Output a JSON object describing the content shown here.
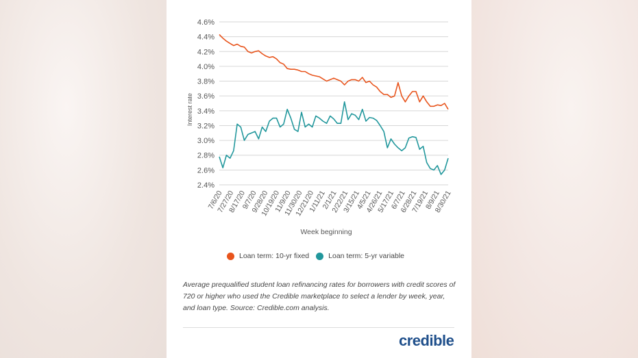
{
  "chart_data": {
    "type": "line",
    "xlabel": "Week beginning",
    "ylabel": "Interest rate",
    "ylim": [
      2.4,
      4.6
    ],
    "yticks": [
      "2.4%",
      "2.6%",
      "2.8%",
      "3.0%",
      "3.2%",
      "3.4%",
      "3.6%",
      "3.8%",
      "4.0%",
      "4.2%",
      "4.4%",
      "4.6%"
    ],
    "xticks": [
      "7/6/20",
      "7/27/20",
      "8/17/20",
      "9/7/20",
      "9/28/20",
      "10/19/20",
      "11/9/20",
      "11/30/20",
      "12/21/20",
      "1/11/21",
      "2/1/21",
      "2/22/21",
      "3/15/21",
      "4/5/21",
      "4/26/21",
      "5/17/21",
      "6/7/21",
      "6/28/21",
      "7/19/21",
      "8/9/21",
      "8/30/21"
    ],
    "grid": true,
    "legend_position": "bottom",
    "series": [
      {
        "name": "Loan term: 10-yr fixed",
        "color": "#e8541c",
        "values": [
          4.43,
          4.38,
          4.34,
          4.31,
          4.28,
          4.3,
          4.27,
          4.26,
          4.2,
          4.18,
          4.2,
          4.21,
          4.17,
          4.14,
          4.12,
          4.13,
          4.1,
          4.05,
          4.03,
          3.97,
          3.96,
          3.96,
          3.95,
          3.93,
          3.93,
          3.9,
          3.88,
          3.87,
          3.86,
          3.83,
          3.8,
          3.82,
          3.84,
          3.82,
          3.8,
          3.75,
          3.8,
          3.82,
          3.82,
          3.8,
          3.85,
          3.78,
          3.8,
          3.75,
          3.72,
          3.66,
          3.62,
          3.62,
          3.58,
          3.6,
          3.78,
          3.6,
          3.52,
          3.6,
          3.66,
          3.66,
          3.52,
          3.6,
          3.52,
          3.46,
          3.46,
          3.48,
          3.47,
          3.5,
          3.42
        ]
      },
      {
        "name": "Loan term: 5-yr variable",
        "color": "#21979c",
        "values": [
          2.78,
          2.63,
          2.8,
          2.76,
          2.86,
          3.22,
          3.18,
          3.0,
          3.08,
          3.1,
          3.12,
          3.02,
          3.18,
          3.12,
          3.26,
          3.3,
          3.3,
          3.18,
          3.22,
          3.42,
          3.3,
          3.15,
          3.12,
          3.38,
          3.18,
          3.22,
          3.18,
          3.33,
          3.3,
          3.26,
          3.23,
          3.33,
          3.29,
          3.23,
          3.23,
          3.52,
          3.28,
          3.36,
          3.34,
          3.28,
          3.42,
          3.26,
          3.31,
          3.3,
          3.27,
          3.2,
          3.12,
          2.9,
          3.02,
          2.95,
          2.9,
          2.86,
          2.9,
          3.03,
          3.05,
          3.04,
          2.88,
          2.92,
          2.7,
          2.62,
          2.6,
          2.66,
          2.54,
          2.6,
          2.76
        ]
      }
    ]
  },
  "caption": "Average prequalified student loan refinancing rates for borrowers with credit scores of 720 or higher who used the Credible marketplace to select a lender by week, year, and loan type. Source: Credible.com analysis.",
  "logo": "credible"
}
